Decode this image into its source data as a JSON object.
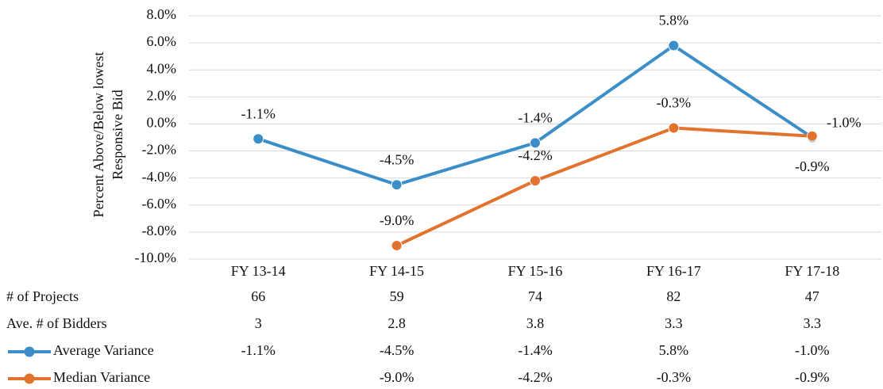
{
  "chart_data": {
    "type": "line",
    "y_label": [
      "Percent Above/Below lowest",
      "Responsive Bid"
    ],
    "categories": [
      "FY 13-14",
      "FY 14-15",
      "FY 15-16",
      "FY 16-17",
      "FY 17-18"
    ],
    "series": [
      {
        "name": "Average Variance",
        "color": "#3b8ec8",
        "values": [
          -1.1,
          -4.5,
          -1.4,
          5.8,
          -1.0
        ],
        "value_labels": [
          "-1.1%",
          "-4.5%",
          "-1.4%",
          "5.8%",
          "-1.0%"
        ]
      },
      {
        "name": "Median Variance",
        "color": "#e2732f",
        "values": [
          null,
          -9.0,
          -4.2,
          -0.3,
          -0.9
        ],
        "value_labels": [
          null,
          "-9.0%",
          "-4.2%",
          "-0.3%",
          "-0.9%"
        ]
      }
    ],
    "ylim": [
      -10,
      8
    ],
    "yticks": [
      {
        "value": 8,
        "label": "8.0%"
      },
      {
        "value": 6,
        "label": "6.0%"
      },
      {
        "value": 4,
        "label": "4.0%"
      },
      {
        "value": 2,
        "label": "2.0%"
      },
      {
        "value": 0,
        "label": "0.0%"
      },
      {
        "value": -2,
        "label": "-2.0%"
      },
      {
        "value": -4,
        "label": "-4.0%"
      },
      {
        "value": -6,
        "label": "-6.0%"
      },
      {
        "value": -8,
        "label": "-8.0%"
      },
      {
        "value": -10,
        "label": "-10.0%"
      }
    ],
    "grid": true,
    "table_rows": [
      {
        "name": "# of Projects",
        "values": [
          66,
          59,
          74,
          82,
          47
        ]
      },
      {
        "name": "Ave. # of Bidders",
        "values": [
          3,
          2.8,
          3.8,
          3.3,
          3.3
        ]
      }
    ]
  }
}
